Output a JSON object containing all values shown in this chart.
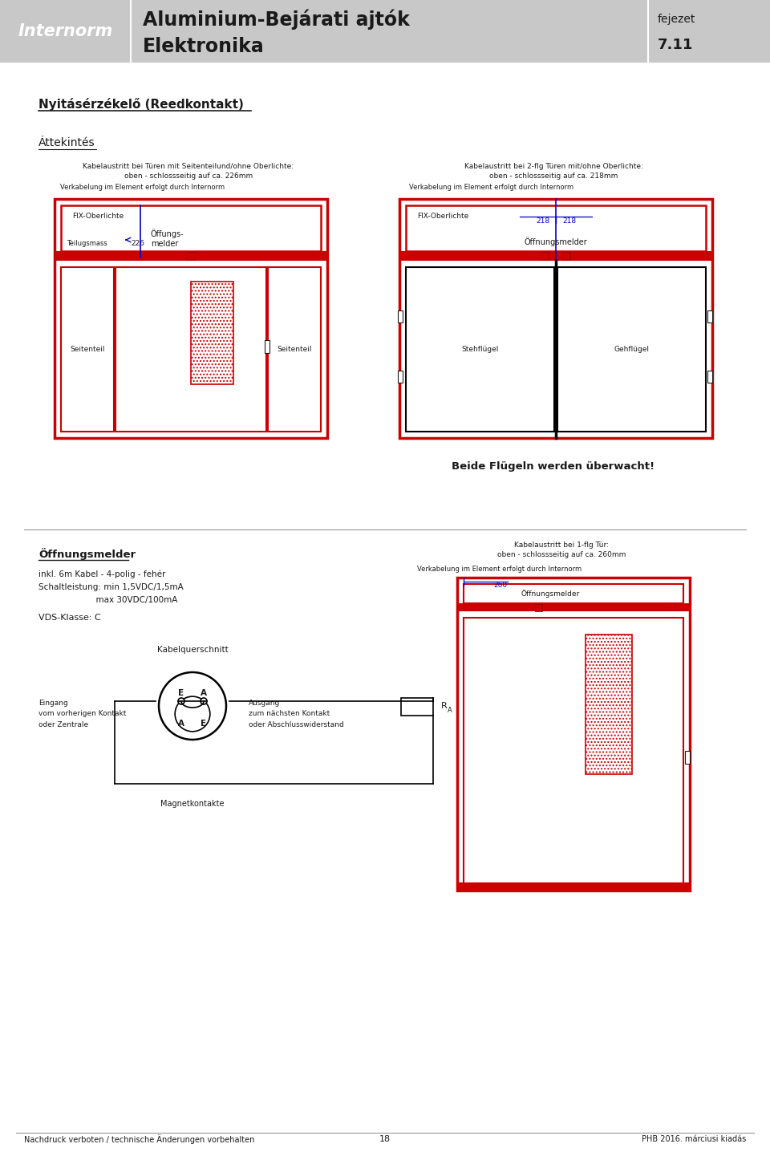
{
  "page_bg": "#ffffff",
  "header_bg": "#c8c8c8",
  "internorm_text": "Internorm",
  "title_line1": "Aluminium-Bejárati ajtók",
  "title_line2": "Elektronika",
  "fejezet_label": "fejezet",
  "fejezet_num": "7.11",
  "section_title": "Nyitásérzékelő (Reedkontakt)",
  "overview_title": "Áttekintés",
  "diagram1_title": "Kabelaustritt bei Türen mit Seitenteilund/ohne Oberlichte:",
  "diagram1_subtitle": "oben - schlossseitig auf ca. 226mm",
  "diagram1_note": "Verkabelung im Element erfolgt durch Internorm",
  "diagram2_title": "Kabelaustritt bei 2-flg Türen mit/ohne Oberlichte:",
  "diagram2_subtitle": "oben - schlossseitig auf ca. 218mm",
  "diagram2_note": "Verkabelung im Element erfolgt durch Internorm",
  "diagram3_title": "Kabelaustritt bei 1-flg Tür:",
  "diagram3_subtitle": "oben - schlossseitig auf ca. 260mm",
  "diagram3_note": "Verkabelung im Element erfolgt durch Internorm",
  "offnungsmelder_title": "Öffnungsmelder",
  "offnungsmelder_line1": "inkl. 6m Kabel - 4-polig - fehér",
  "offnungsmelder_line2": "Schaltleistung: min 1,5VDC/1,5mA",
  "offnungsmelder_line3": "                      max 30VDC/100mA",
  "vds_text": "VDS-Klasse: C",
  "kabelquerschnitt_text": "Kabelquerschnitt",
  "eingang_text": "Eingang\nvom vorherigen Kontakt\noder Zentrale",
  "ausgang_text": "Ausgang\nzum nächsten Kontakt\noder Abschlusswiderstand",
  "magnetkontakte_text": "Magnetkontakte",
  "beide_text": "Beide Flügeln werden überwacht!",
  "footer_left": "Nachdruck verboten / technische Änderungen vorbehalten",
  "footer_center": "18",
  "footer_right": "PHB 2016. márciusi kiadás",
  "red_color": "#cc0000",
  "blue_color": "#0000cc",
  "dark_color": "#1a1a1a",
  "black": "#000000",
  "lgray": "#999999"
}
